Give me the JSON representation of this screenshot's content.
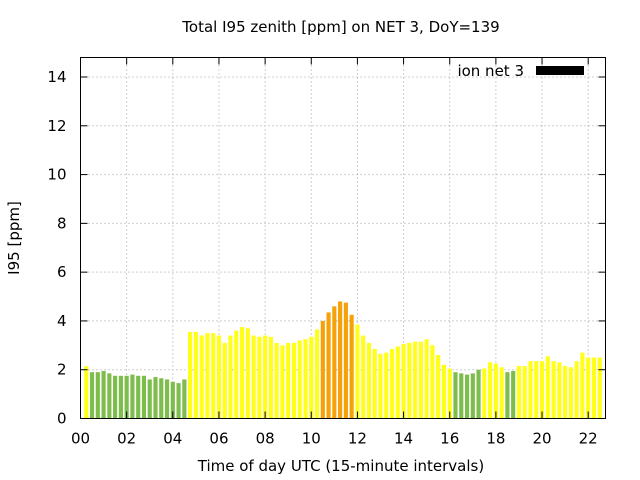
{
  "chart_data": {
    "type": "bar",
    "title": "Total I95 zenith [ppm] on NET 3, DoY=139",
    "xlabel": "Time of day UTC (15-minute intervals)",
    "ylabel": "I95 [ppm]",
    "xlim": [
      0,
      22.75
    ],
    "ylim": [
      0,
      14.8
    ],
    "xticks": [
      0,
      2,
      4,
      6,
      8,
      10,
      12,
      14,
      16,
      18,
      20,
      22
    ],
    "xtick_labels": [
      "00",
      "02",
      "04",
      "06",
      "08",
      "10",
      "12",
      "14",
      "16",
      "18",
      "20",
      "22"
    ],
    "yticks": [
      0,
      2,
      4,
      6,
      8,
      10,
      12,
      14
    ],
    "ytick_labels": [
      "0",
      "2",
      "4",
      "6",
      "8",
      "10",
      "12",
      "14"
    ],
    "grid": true,
    "legend": {
      "label": "ion net 3",
      "color": "#000000",
      "position": "top-right"
    },
    "interval_hours": 0.25,
    "colors": {
      "low": "#7dbd4b",
      "medium": "#ffff1a",
      "high": "#f5a20a"
    },
    "series": [
      {
        "x": [
          0.25,
          0.5,
          0.75,
          1.0,
          1.25,
          1.5,
          1.75,
          2.0,
          2.25,
          2.5,
          2.75,
          3.0,
          3.25,
          3.5,
          3.75,
          4.0,
          4.25,
          4.5,
          4.75,
          5.0,
          5.25,
          5.5,
          5.75,
          6.0,
          6.25,
          6.5,
          6.75,
          7.0,
          7.25,
          7.5,
          7.75,
          8.0,
          8.25,
          8.5,
          8.75,
          9.0,
          9.25,
          9.5,
          9.75,
          10.0,
          10.25,
          10.5,
          10.75,
          11.0,
          11.25,
          11.5,
          11.75,
          12.0,
          12.25,
          12.5,
          12.75,
          13.0,
          13.25,
          13.5,
          13.75,
          14.0,
          14.25,
          14.5,
          14.75,
          15.0,
          15.25,
          15.5,
          15.75,
          16.0,
          16.25,
          16.5,
          16.75,
          17.0,
          17.25,
          17.5,
          17.75,
          18.0,
          18.25,
          18.5,
          18.75,
          19.0,
          19.25,
          19.5,
          19.75,
          20.0,
          20.25,
          20.5,
          20.75,
          21.0,
          21.25,
          21.5,
          21.75,
          22.0,
          22.25,
          22.5
        ],
        "values": [
          2.15,
          1.9,
          1.9,
          1.95,
          1.85,
          1.75,
          1.75,
          1.75,
          1.8,
          1.75,
          1.75,
          1.6,
          1.7,
          1.65,
          1.6,
          1.5,
          1.45,
          1.6,
          3.55,
          3.55,
          3.4,
          3.5,
          3.5,
          3.4,
          3.1,
          3.4,
          3.6,
          3.75,
          3.7,
          3.4,
          3.35,
          3.4,
          3.35,
          3.1,
          3.0,
          3.1,
          3.1,
          3.2,
          3.25,
          3.35,
          3.65,
          4.0,
          4.35,
          4.6,
          4.8,
          4.75,
          4.25,
          3.85,
          3.4,
          3.1,
          2.85,
          2.65,
          2.7,
          2.85,
          2.95,
          3.05,
          3.1,
          3.15,
          3.15,
          3.25,
          3.0,
          2.6,
          2.2,
          2.05,
          1.9,
          1.85,
          1.8,
          1.85,
          2.0,
          2.05,
          2.3,
          2.25,
          2.1,
          1.9,
          1.95,
          2.15,
          2.15,
          2.35,
          2.35,
          2.35,
          2.55,
          2.35,
          2.3,
          2.15,
          2.1,
          2.35,
          2.7,
          2.5,
          2.5,
          2.5
        ],
        "levels": [
          "medium",
          "low",
          "low",
          "low",
          "low",
          "low",
          "low",
          "low",
          "low",
          "low",
          "low",
          "low",
          "low",
          "low",
          "low",
          "low",
          "low",
          "low",
          "medium",
          "medium",
          "medium",
          "medium",
          "medium",
          "medium",
          "medium",
          "medium",
          "medium",
          "medium",
          "medium",
          "medium",
          "medium",
          "medium",
          "medium",
          "medium",
          "medium",
          "medium",
          "medium",
          "medium",
          "medium",
          "medium",
          "medium",
          "high",
          "high",
          "high",
          "high",
          "high",
          "high",
          "medium",
          "medium",
          "medium",
          "medium",
          "medium",
          "medium",
          "medium",
          "medium",
          "medium",
          "medium",
          "medium",
          "medium",
          "medium",
          "medium",
          "medium",
          "medium",
          "medium",
          "low",
          "low",
          "low",
          "low",
          "low",
          "medium",
          "medium",
          "medium",
          "medium",
          "low",
          "low",
          "medium",
          "medium",
          "medium",
          "medium",
          "medium",
          "medium",
          "medium",
          "medium",
          "medium",
          "medium",
          "medium",
          "medium",
          "medium",
          "medium",
          "medium"
        ]
      }
    ]
  }
}
